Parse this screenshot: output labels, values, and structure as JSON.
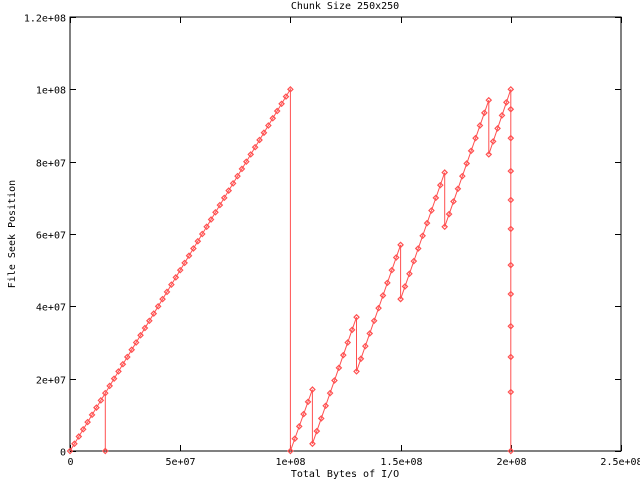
{
  "chart_data": {
    "type": "line",
    "title": "Chunk Size 250x250",
    "xlabel": "Total Bytes of I/O",
    "ylabel": "File Seek Position",
    "xlim": [
      0,
      250000000.0
    ],
    "ylim": [
      0,
      120000000.0
    ],
    "x_ticks": [
      {
        "value": 0,
        "label": "0"
      },
      {
        "value": 50000000.0,
        "label": "5e+07"
      },
      {
        "value": 100000000.0,
        "label": "1e+08"
      },
      {
        "value": 150000000.0,
        "label": "1.5e+08"
      },
      {
        "value": 200000000.0,
        "label": "2e+08"
      },
      {
        "value": 250000000.0,
        "label": "2.5e+08"
      }
    ],
    "y_ticks": [
      {
        "value": 0,
        "label": "0"
      },
      {
        "value": 20000000.0,
        "label": "2e+07"
      },
      {
        "value": 40000000.0,
        "label": "4e+07"
      },
      {
        "value": 60000000.0,
        "label": "6e+07"
      },
      {
        "value": 80000000.0,
        "label": "8e+07"
      },
      {
        "value": 100000000.0,
        "label": "1e+08"
      },
      {
        "value": 120000000.0,
        "label": "1.2e+08"
      }
    ],
    "grid": false,
    "color": "#ff5050",
    "marker": "diamond",
    "series": [
      {
        "line": [
          [
            0,
            0
          ],
          [
            16000000.0,
            16000000.0
          ],
          [
            16000000.0,
            0
          ],
          [
            16000000.0,
            16000000.0
          ],
          [
            100000000.0,
            100000000.0
          ],
          [
            100000000.0,
            0
          ],
          [
            110000000.0,
            17000000.0
          ],
          [
            110000000.0,
            2000000.0
          ],
          [
            130000000.0,
            37000000.0
          ],
          [
            130000000.0,
            22000000.0
          ],
          [
            150000000.0,
            57000000.0
          ],
          [
            150000000.0,
            42000000.0
          ],
          [
            170000000.0,
            77000000.0
          ],
          [
            170000000.0,
            62000000.0
          ],
          [
            190000000.0,
            97000000.0
          ],
          [
            190000000.0,
            82000000.0
          ],
          [
            200000000.0,
            100000000.0
          ],
          [
            200000000.0,
            0
          ]
        ],
        "points": [
          [
            0,
            0
          ],
          [
            16000000.0,
            0
          ],
          [
            2000000.0,
            2000000.0
          ],
          [
            4000000.0,
            4000000.0
          ],
          [
            6000000.0,
            6000000.0
          ],
          [
            8000000.0,
            8000000.0
          ],
          [
            10000000.0,
            10000000.0
          ],
          [
            12000000.0,
            12000000.0
          ],
          [
            14000000.0,
            14000000.0
          ],
          [
            16000000.0,
            16000000.0
          ],
          [
            18000000.0,
            18000000.0
          ],
          [
            20000000.0,
            20000000.0
          ],
          [
            22000000.0,
            22000000.0
          ],
          [
            24000000.0,
            24000000.0
          ],
          [
            26000000.0,
            26000000.0
          ],
          [
            28000000.0,
            28000000.0
          ],
          [
            30000000.0,
            30000000.0
          ],
          [
            32000000.0,
            32000000.0
          ],
          [
            34000000.0,
            34000000.0
          ],
          [
            36000000.0,
            36000000.0
          ],
          [
            38000000.0,
            38000000.0
          ],
          [
            40000000.0,
            40000000.0
          ],
          [
            42000000.0,
            42000000.0
          ],
          [
            44000000.0,
            44000000.0
          ],
          [
            46000000.0,
            46000000.0
          ],
          [
            48000000.0,
            48000000.0
          ],
          [
            50000000.0,
            50000000.0
          ],
          [
            52000000.0,
            52000000.0
          ],
          [
            54000000.0,
            54000000.0
          ],
          [
            56000000.0,
            56000000.0
          ],
          [
            58000000.0,
            58000000.0
          ],
          [
            60000000.0,
            60000000.0
          ],
          [
            62000000.0,
            62000000.0
          ],
          [
            64000000.0,
            64000000.0
          ],
          [
            66000000.0,
            66000000.0
          ],
          [
            68000000.0,
            68000000.0
          ],
          [
            70000000.0,
            70000000.0
          ],
          [
            72000000.0,
            72000000.0
          ],
          [
            74000000.0,
            74000000.0
          ],
          [
            76000000.0,
            76000000.0
          ],
          [
            78000000.0,
            78000000.0
          ],
          [
            80000000.0,
            80000000.0
          ],
          [
            82000000.0,
            82000000.0
          ],
          [
            84000000.0,
            84000000.0
          ],
          [
            86000000.0,
            86000000.0
          ],
          [
            88000000.0,
            88000000.0
          ],
          [
            90000000.0,
            90000000.0
          ],
          [
            92000000.0,
            92000000.0
          ],
          [
            94000000.0,
            94000000.0
          ],
          [
            96000000.0,
            96000000.0
          ],
          [
            98000000.0,
            98000000.0
          ],
          [
            100000000.0,
            100000000.0
          ],
          [
            100000000.0,
            0
          ],
          [
            102000000.0,
            3400000.0
          ],
          [
            104000000.0,
            6800000.0
          ],
          [
            106000000.0,
            10200000.0
          ],
          [
            108000000.0,
            13600000.0
          ],
          [
            110000000.0,
            17000000.0
          ],
          [
            110000000.0,
            2000000.0
          ],
          [
            112000000.0,
            5500000.0
          ],
          [
            114000000.0,
            9000000.0
          ],
          [
            116000000.0,
            12500000.0
          ],
          [
            118000000.0,
            16000000.0
          ],
          [
            120000000.0,
            19500000.0
          ],
          [
            122000000.0,
            23000000.0
          ],
          [
            124000000.0,
            26500000.0
          ],
          [
            126000000.0,
            30000000.0
          ],
          [
            128000000.0,
            33500000.0
          ],
          [
            130000000.0,
            37000000.0
          ],
          [
            130000000.0,
            22000000.0
          ],
          [
            132000000.0,
            25500000.0
          ],
          [
            134000000.0,
            29000000.0
          ],
          [
            136000000.0,
            32500000.0
          ],
          [
            138000000.0,
            36000000.0
          ],
          [
            140000000.0,
            39500000.0
          ],
          [
            142000000.0,
            43000000.0
          ],
          [
            144000000.0,
            46500000.0
          ],
          [
            146000000.0,
            50000000.0
          ],
          [
            148000000.0,
            53500000.0
          ],
          [
            150000000.0,
            57000000.0
          ],
          [
            150000000.0,
            42000000.0
          ],
          [
            152000000.0,
            45500000.0
          ],
          [
            154000000.0,
            49000000.0
          ],
          [
            156000000.0,
            52500000.0
          ],
          [
            158000000.0,
            56000000.0
          ],
          [
            160000000.0,
            59500000.0
          ],
          [
            162000000.0,
            63000000.0
          ],
          [
            164000000.0,
            66500000.0
          ],
          [
            166000000.0,
            70000000.0
          ],
          [
            168000000.0,
            73500000.0
          ],
          [
            170000000.0,
            77000000.0
          ],
          [
            170000000.0,
            62000000.0
          ],
          [
            172000000.0,
            65500000.0
          ],
          [
            174000000.0,
            69000000.0
          ],
          [
            176000000.0,
            72500000.0
          ],
          [
            178000000.0,
            76000000.0
          ],
          [
            180000000.0,
            79500000.0
          ],
          [
            182000000.0,
            83000000.0
          ],
          [
            184000000.0,
            86500000.0
          ],
          [
            186000000.0,
            90000000.0
          ],
          [
            188000000.0,
            93500000.0
          ],
          [
            190000000.0,
            97000000.0
          ],
          [
            190000000.0,
            82000000.0
          ],
          [
            192000000.0,
            85600000.0
          ],
          [
            194000000.0,
            89200000.0
          ],
          [
            196000000.0,
            92800000.0
          ],
          [
            198000000.0,
            96400000.0
          ],
          [
            200000000.0,
            100000000.0
          ],
          [
            200000000.0,
            94500000.0
          ],
          [
            200000000.0,
            86500000.0
          ],
          [
            200000000.0,
            77400000.0
          ],
          [
            200000000.0,
            69400000.0
          ],
          [
            200000000.0,
            61400000.0
          ],
          [
            200000000.0,
            51400000.0
          ],
          [
            200000000.0,
            43400000.0
          ],
          [
            200000000.0,
            34500000.0
          ],
          [
            200000000.0,
            26000000.0
          ],
          [
            200000000.0,
            16300000.0
          ],
          [
            200000000.0,
            0
          ]
        ]
      }
    ]
  }
}
